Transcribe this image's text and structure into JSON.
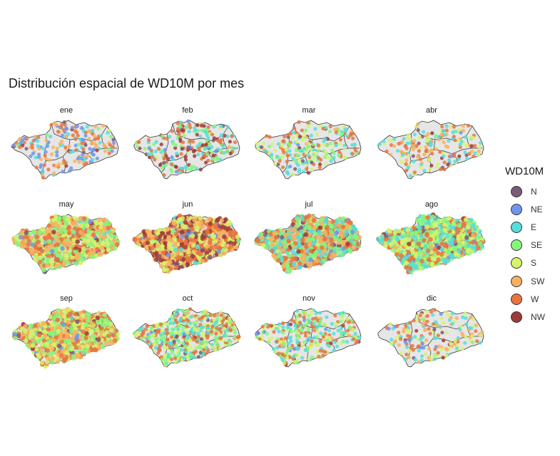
{
  "chart_data": {
    "type": "scatter",
    "title": "Distribución espacial de WD10M por mes",
    "panels": [
      "ene",
      "feb",
      "mar",
      "abr",
      "may",
      "jun",
      "jul",
      "ago",
      "sep",
      "oct",
      "nov",
      "dic"
    ],
    "legend": {
      "title": "WD10M",
      "position": "right",
      "categories": [
        "N",
        "NE",
        "E",
        "SE",
        "S",
        "SW",
        "W",
        "NW"
      ],
      "colors": [
        "#7b5a78",
        "#6f95ee",
        "#55dedd",
        "#86f67f",
        "#d6f36c",
        "#f9b061",
        "#e9743f",
        "#9e3b39"
      ]
    },
    "point_density": [
      0.18,
      0.22,
      0.2,
      0.16,
      0.85,
      1.0,
      1.0,
      1.0,
      0.95,
      0.5,
      0.3,
      0.16
    ],
    "dominant_categories": [
      [
        "W",
        "SW",
        "E",
        "NE"
      ],
      [
        "W",
        "SE",
        "E",
        "NW"
      ],
      [
        "SE",
        "E",
        "W",
        "S"
      ],
      [
        "S",
        "SW",
        "E",
        "W"
      ],
      [
        "SE",
        "S",
        "SW",
        "W"
      ],
      [
        "W",
        "SW",
        "NW",
        "S"
      ],
      [
        "SW",
        "W",
        "SE",
        "E"
      ],
      [
        "SE",
        "S",
        "W",
        "E"
      ],
      [
        "S",
        "SE",
        "W",
        "SW"
      ],
      [
        "W",
        "S",
        "SE",
        "E"
      ],
      [
        "SE",
        "S",
        "W",
        "E"
      ],
      [
        "S",
        "SW",
        "E",
        "W"
      ]
    ],
    "region_fill": "#e6e6e6",
    "region_stroke": "#333333",
    "grid": false
  }
}
